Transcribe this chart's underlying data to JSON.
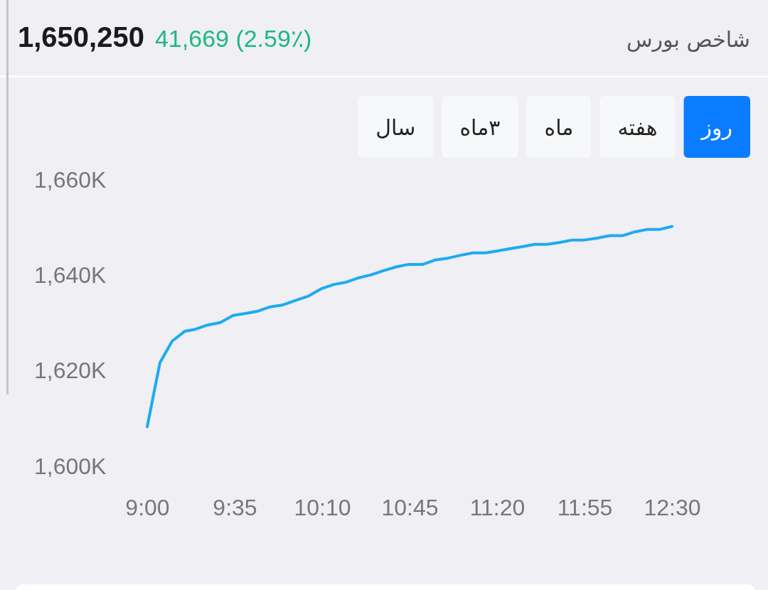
{
  "chart_data": {
    "type": "line",
    "title": "شاخص بورس",
    "subtitle": "1,650,250",
    "annotations": [
      "41,669 (2.59٪)",
      "روز",
      "هفته",
      "ماه",
      "۳ماه",
      "سال"
    ],
    "x": [
      9.0,
      9.085,
      9.166,
      9.251,
      9.322,
      9.403,
      9.488,
      9.573,
      9.654,
      9.739,
      9.82,
      9.905,
      9.986,
      10.071,
      10.161,
      10.246,
      10.332,
      10.412,
      10.493,
      10.578,
      10.664,
      10.744,
      10.839,
      10.919,
      11.005,
      11.09,
      11.171,
      11.256,
      11.336,
      11.422,
      11.502,
      11.583,
      11.668,
      11.754,
      11.834,
      11.915,
      12.0,
      12.085,
      12.17,
      12.251,
      12.332,
      12.417,
      12.5
    ],
    "series": [
      {
        "color": "#1eaaf1",
        "values": [
          1608300,
          1621700,
          1626200,
          1628300,
          1628700,
          1629600,
          1630100,
          1631600,
          1632000,
          1632500,
          1633400,
          1633800,
          1634700,
          1635600,
          1637200,
          1638100,
          1638600,
          1639500,
          1640100,
          1641000,
          1641800,
          1642300,
          1642300,
          1643200,
          1643600,
          1644200,
          1644700,
          1644700,
          1645100,
          1645600,
          1646000,
          1646500,
          1646500,
          1646900,
          1647400,
          1647400,
          1647800,
          1648300,
          1648300,
          1649100,
          1649600,
          1649600,
          1650250
        ]
      }
    ],
    "xlim": [
      9,
      12.5
    ],
    "ylim": [
      1600000,
      1660000
    ],
    "xticks": [
      {
        "value": 9,
        "label": "9:00"
      },
      {
        "value": 9.5833,
        "label": "9:35"
      },
      {
        "value": 10.1667,
        "label": "10:10"
      },
      {
        "value": 10.75,
        "label": "10:45"
      },
      {
        "value": 11.3333,
        "label": "11:20"
      },
      {
        "value": 11.9167,
        "label": "11:55"
      },
      {
        "value": 12.5,
        "label": "12:30"
      }
    ],
    "yticks": [
      {
        "value": 1600000,
        "label": "1,600K"
      },
      {
        "value": 1620000,
        "label": "1,620K"
      },
      {
        "value": 1640000,
        "label": "1,640K"
      },
      {
        "value": 1660000,
        "label": "1,660K"
      }
    ]
  }
}
